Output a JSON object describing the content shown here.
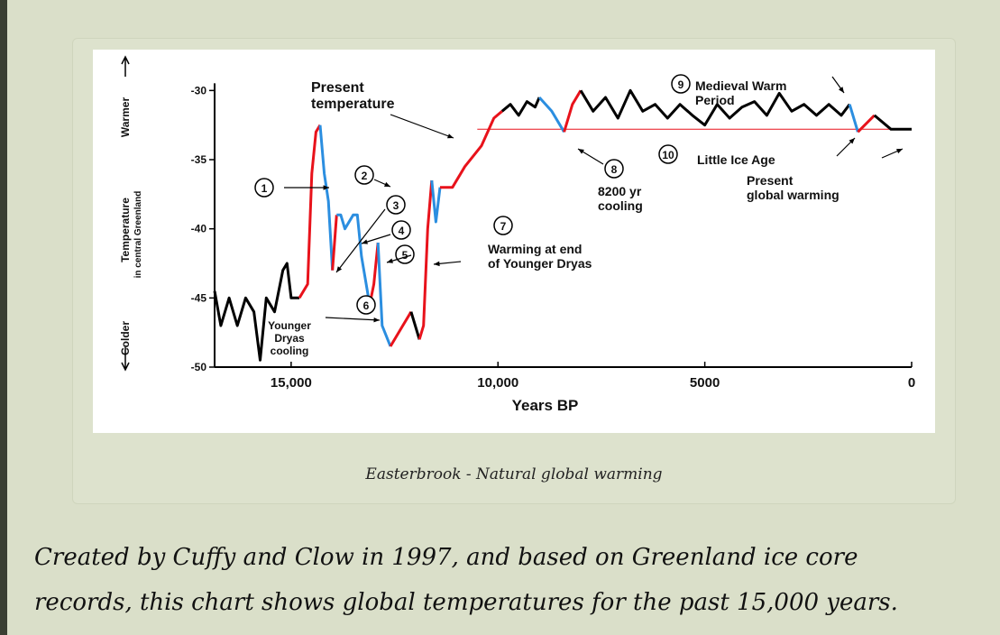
{
  "chart_data": {
    "type": "line",
    "x_label": "Years BP",
    "y_labels": [
      "Warmer",
      "Temperature",
      "in central Greenland",
      "Colder"
    ],
    "xlim": [
      16850,
      0
    ],
    "ylim": [
      -50,
      -29
    ],
    "xticks": [
      {
        "value": 15000,
        "label": "15,000"
      },
      {
        "value": 10000,
        "label": "10,000"
      },
      5000,
      0
    ],
    "yticks": [
      -30,
      -35,
      -40,
      -45,
      -50
    ],
    "reference_line": {
      "value": -32.8,
      "from": 10500
    },
    "series": [
      {
        "color": "#000000",
        "x": [
          16850,
          16700,
          16500,
          16300,
          16100,
          15900,
          15750,
          15600,
          15400,
          15200,
          15100,
          15000,
          14800
        ],
        "values": [
          -44.5,
          -47,
          -45,
          -47,
          -45,
          -46,
          -49.5,
          -45,
          -46,
          -43,
          -42.5,
          -45,
          -45
        ]
      },
      {
        "color": "#e8121b",
        "x": [
          14800,
          14600,
          14500,
          14400,
          14300
        ],
        "values": [
          -45,
          -44,
          -36,
          -33,
          -32.5
        ]
      },
      {
        "color": "#2b8ee0",
        "x": [
          14300,
          14200,
          14100,
          14000
        ],
        "values": [
          -32.5,
          -36,
          -38,
          -43
        ]
      },
      {
        "color": "#e8121b",
        "x": [
          14000,
          13900
        ],
        "values": [
          -43,
          -39
        ]
      },
      {
        "color": "#2b8ee0",
        "x": [
          13900,
          13800,
          13700,
          13500,
          13400,
          13300,
          13100
        ],
        "values": [
          -39,
          -39,
          -40,
          -39,
          -39,
          -42,
          -45.5
        ]
      },
      {
        "color": "#e8121b",
        "x": [
          13100,
          13000,
          12900
        ],
        "values": [
          -45.5,
          -44,
          -41
        ]
      },
      {
        "color": "#2b8ee0",
        "x": [
          12900,
          12800,
          12600
        ],
        "values": [
          -41,
          -47,
          -48.5
        ]
      },
      {
        "color": "#e8121b",
        "x": [
          12600,
          12300,
          12100
        ],
        "values": [
          -48.5,
          -47,
          -46
        ]
      },
      {
        "color": "#000000",
        "x": [
          12100,
          11900
        ],
        "values": [
          -46,
          -48
        ]
      },
      {
        "color": "#e8121b",
        "x": [
          11900,
          11800,
          11700,
          11600
        ],
        "values": [
          -48,
          -47,
          -40,
          -36.5
        ]
      },
      {
        "color": "#2b8ee0",
        "x": [
          11600,
          11500,
          11400
        ],
        "values": [
          -36.5,
          -39.5,
          -37
        ]
      },
      {
        "color": "#e8121b",
        "x": [
          11400,
          11100,
          10800,
          10400,
          10100,
          9900
        ],
        "values": [
          -37,
          -37,
          -35.5,
          -34,
          -32,
          -31.5
        ]
      },
      {
        "color": "#000000",
        "x": [
          9900,
          9700,
          9500,
          9300,
          9100,
          9000
        ],
        "values": [
          -31.5,
          -31,
          -31.8,
          -30.8,
          -31.2,
          -30.5
        ]
      },
      {
        "color": "#2b8ee0",
        "x": [
          9000,
          8700,
          8400
        ],
        "values": [
          -30.5,
          -31.5,
          -33
        ]
      },
      {
        "color": "#e8121b",
        "x": [
          8400,
          8200,
          8000
        ],
        "values": [
          -33,
          -31,
          -30
        ]
      },
      {
        "color": "#000000",
        "x": [
          8000,
          7700,
          7400,
          7100,
          6800,
          6500,
          6200,
          5900,
          5600,
          5300,
          5000,
          4700,
          4400,
          4100,
          3800,
          3500,
          3200,
          2900,
          2600,
          2300,
          2000,
          1700,
          1500
        ],
        "values": [
          -30,
          -31.5,
          -30.5,
          -32,
          -30,
          -31.5,
          -31,
          -32,
          -31,
          -31.8,
          -32.5,
          -31,
          -32,
          -31.2,
          -30.8,
          -31.8,
          -30.2,
          -31.5,
          -31,
          -31.8,
          -31,
          -31.8,
          -31
        ]
      },
      {
        "color": "#2b8ee0",
        "x": [
          1500,
          1300
        ],
        "values": [
          -31,
          -33
        ]
      },
      {
        "color": "#e8121b",
        "x": [
          1300,
          900
        ],
        "values": [
          -33,
          -31.8
        ]
      },
      {
        "color": "#000000",
        "x": [
          900,
          500,
          0
        ],
        "values": [
          -31.8,
          -32.8,
          -32.8
        ]
      }
    ],
    "annotations": [
      [
        "Present",
        "temperature"
      ],
      [
        "1"
      ],
      [
        "2"
      ],
      [
        "3"
      ],
      [
        "4"
      ],
      [
        "5"
      ],
      [
        "6"
      ],
      [
        "Younger",
        "Dryas",
        "cooling"
      ],
      [
        "7"
      ],
      [
        "Warming at end",
        "of Younger Dryas"
      ],
      [
        "8"
      ],
      [
        "8200 yr",
        "cooling"
      ],
      [
        "9"
      ],
      [
        "Medieval Warm",
        "Period"
      ],
      [
        "10"
      ],
      [
        "Little Ice Age"
      ],
      [
        "Present",
        "global warming"
      ]
    ]
  },
  "caption": "Easterbrook - Natural global warming",
  "body": [
    "Created by Cuffy and Clow in 1997, and based on Greenland ice core",
    "records, this chart shows global temperatures for the past 15,000 years."
  ]
}
